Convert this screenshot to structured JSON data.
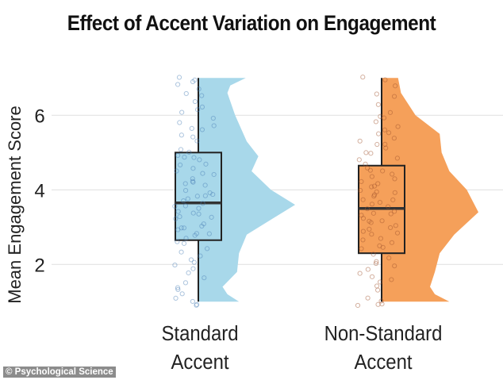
{
  "chart_data": {
    "type": "raincloud",
    "title": "Effect of Accent Variation on Engagement",
    "xlabel": "",
    "ylabel": "Mean Engagement Score",
    "ylim": [
      1,
      7
    ],
    "yticks": [
      2,
      4,
      6
    ],
    "grid": "horizontal",
    "legend": "none",
    "groups": [
      {
        "label_lines": [
          "Standard",
          "Accent"
        ],
        "fill": "#a8d8ea",
        "point_color": "#4a7fb5",
        "box": {
          "min": 1.0,
          "q1": 2.65,
          "median": 3.65,
          "q3": 5.0,
          "max": 7.0
        },
        "density": [
          [
            1.0,
            0.42
          ],
          [
            1.2,
            0.3
          ],
          [
            1.4,
            0.25
          ],
          [
            1.8,
            0.4
          ],
          [
            2.3,
            0.42
          ],
          [
            2.8,
            0.5
          ],
          [
            3.2,
            0.75
          ],
          [
            3.6,
            1.0
          ],
          [
            4.0,
            0.75
          ],
          [
            4.5,
            0.55
          ],
          [
            4.9,
            0.62
          ],
          [
            5.3,
            0.5
          ],
          [
            6.0,
            0.38
          ],
          [
            6.6,
            0.3
          ],
          [
            6.8,
            0.33
          ],
          [
            7.0,
            0.49
          ]
        ],
        "points": [
          6.95,
          7.0,
          6.9,
          6.85,
          6.7,
          6.6,
          6.5,
          6.35,
          6.2,
          6.15,
          6.05,
          5.95,
          5.8,
          5.7,
          5.65,
          5.6,
          5.5,
          5.4,
          5.3,
          5.1,
          5.0,
          4.95,
          4.9,
          4.85,
          4.8,
          4.7,
          4.65,
          4.55,
          4.5,
          4.45,
          4.4,
          4.3,
          4.25,
          4.2,
          4.15,
          4.1,
          4.0,
          3.95,
          3.9,
          3.85,
          3.8,
          3.75,
          3.7,
          3.65,
          3.6,
          3.55,
          3.5,
          3.45,
          3.4,
          3.35,
          3.3,
          3.25,
          3.2,
          3.1,
          3.05,
          3.0,
          2.95,
          2.9,
          2.85,
          2.8,
          2.75,
          2.7,
          2.6,
          2.55,
          2.4,
          2.3,
          2.2,
          2.1,
          2.05,
          2.0,
          1.9,
          1.8,
          1.65,
          1.5,
          1.4,
          1.3,
          1.2,
          1.1,
          1.0,
          0.95,
          0.9
        ]
      },
      {
        "label_lines": [
          "Non-Standard",
          "Accent"
        ],
        "fill": "#f5a05a",
        "point_color": "#a0522d",
        "box": {
          "min": 1.0,
          "q1": 2.3,
          "median": 3.5,
          "q3": 4.65,
          "max": 7.0
        },
        "density": [
          [
            1.0,
            0.7
          ],
          [
            1.2,
            0.55
          ],
          [
            1.4,
            0.5
          ],
          [
            1.8,
            0.55
          ],
          [
            2.3,
            0.6
          ],
          [
            2.8,
            0.75
          ],
          [
            3.4,
            1.0
          ],
          [
            4.0,
            0.88
          ],
          [
            4.5,
            0.7
          ],
          [
            5.0,
            0.62
          ],
          [
            5.5,
            0.6
          ],
          [
            6.0,
            0.35
          ],
          [
            6.6,
            0.2
          ],
          [
            7.0,
            0.17
          ]
        ],
        "points": [
          7.05,
          6.95,
          6.8,
          6.6,
          6.5,
          6.3,
          6.1,
          6.0,
          5.95,
          5.8,
          5.7,
          5.6,
          5.55,
          5.5,
          5.4,
          5.3,
          5.25,
          5.2,
          5.1,
          5.0,
          4.95,
          4.85,
          4.8,
          4.7,
          4.6,
          4.55,
          4.5,
          4.4,
          4.35,
          4.3,
          4.2,
          4.15,
          4.1,
          4.05,
          4.0,
          3.95,
          3.9,
          3.85,
          3.8,
          3.75,
          3.7,
          3.65,
          3.6,
          3.55,
          3.5,
          3.45,
          3.4,
          3.35,
          3.3,
          3.25,
          3.2,
          3.15,
          3.1,
          3.05,
          3.0,
          2.95,
          2.9,
          2.85,
          2.8,
          2.7,
          2.65,
          2.6,
          2.5,
          2.45,
          2.4,
          2.3,
          2.2,
          2.1,
          2.0,
          1.95,
          1.85,
          1.75,
          1.7,
          1.6,
          1.5,
          1.4,
          1.3,
          1.1,
          1.0,
          0.95,
          0.9,
          0.9
        ]
      }
    ]
  },
  "watermark": "© Psychological Science"
}
